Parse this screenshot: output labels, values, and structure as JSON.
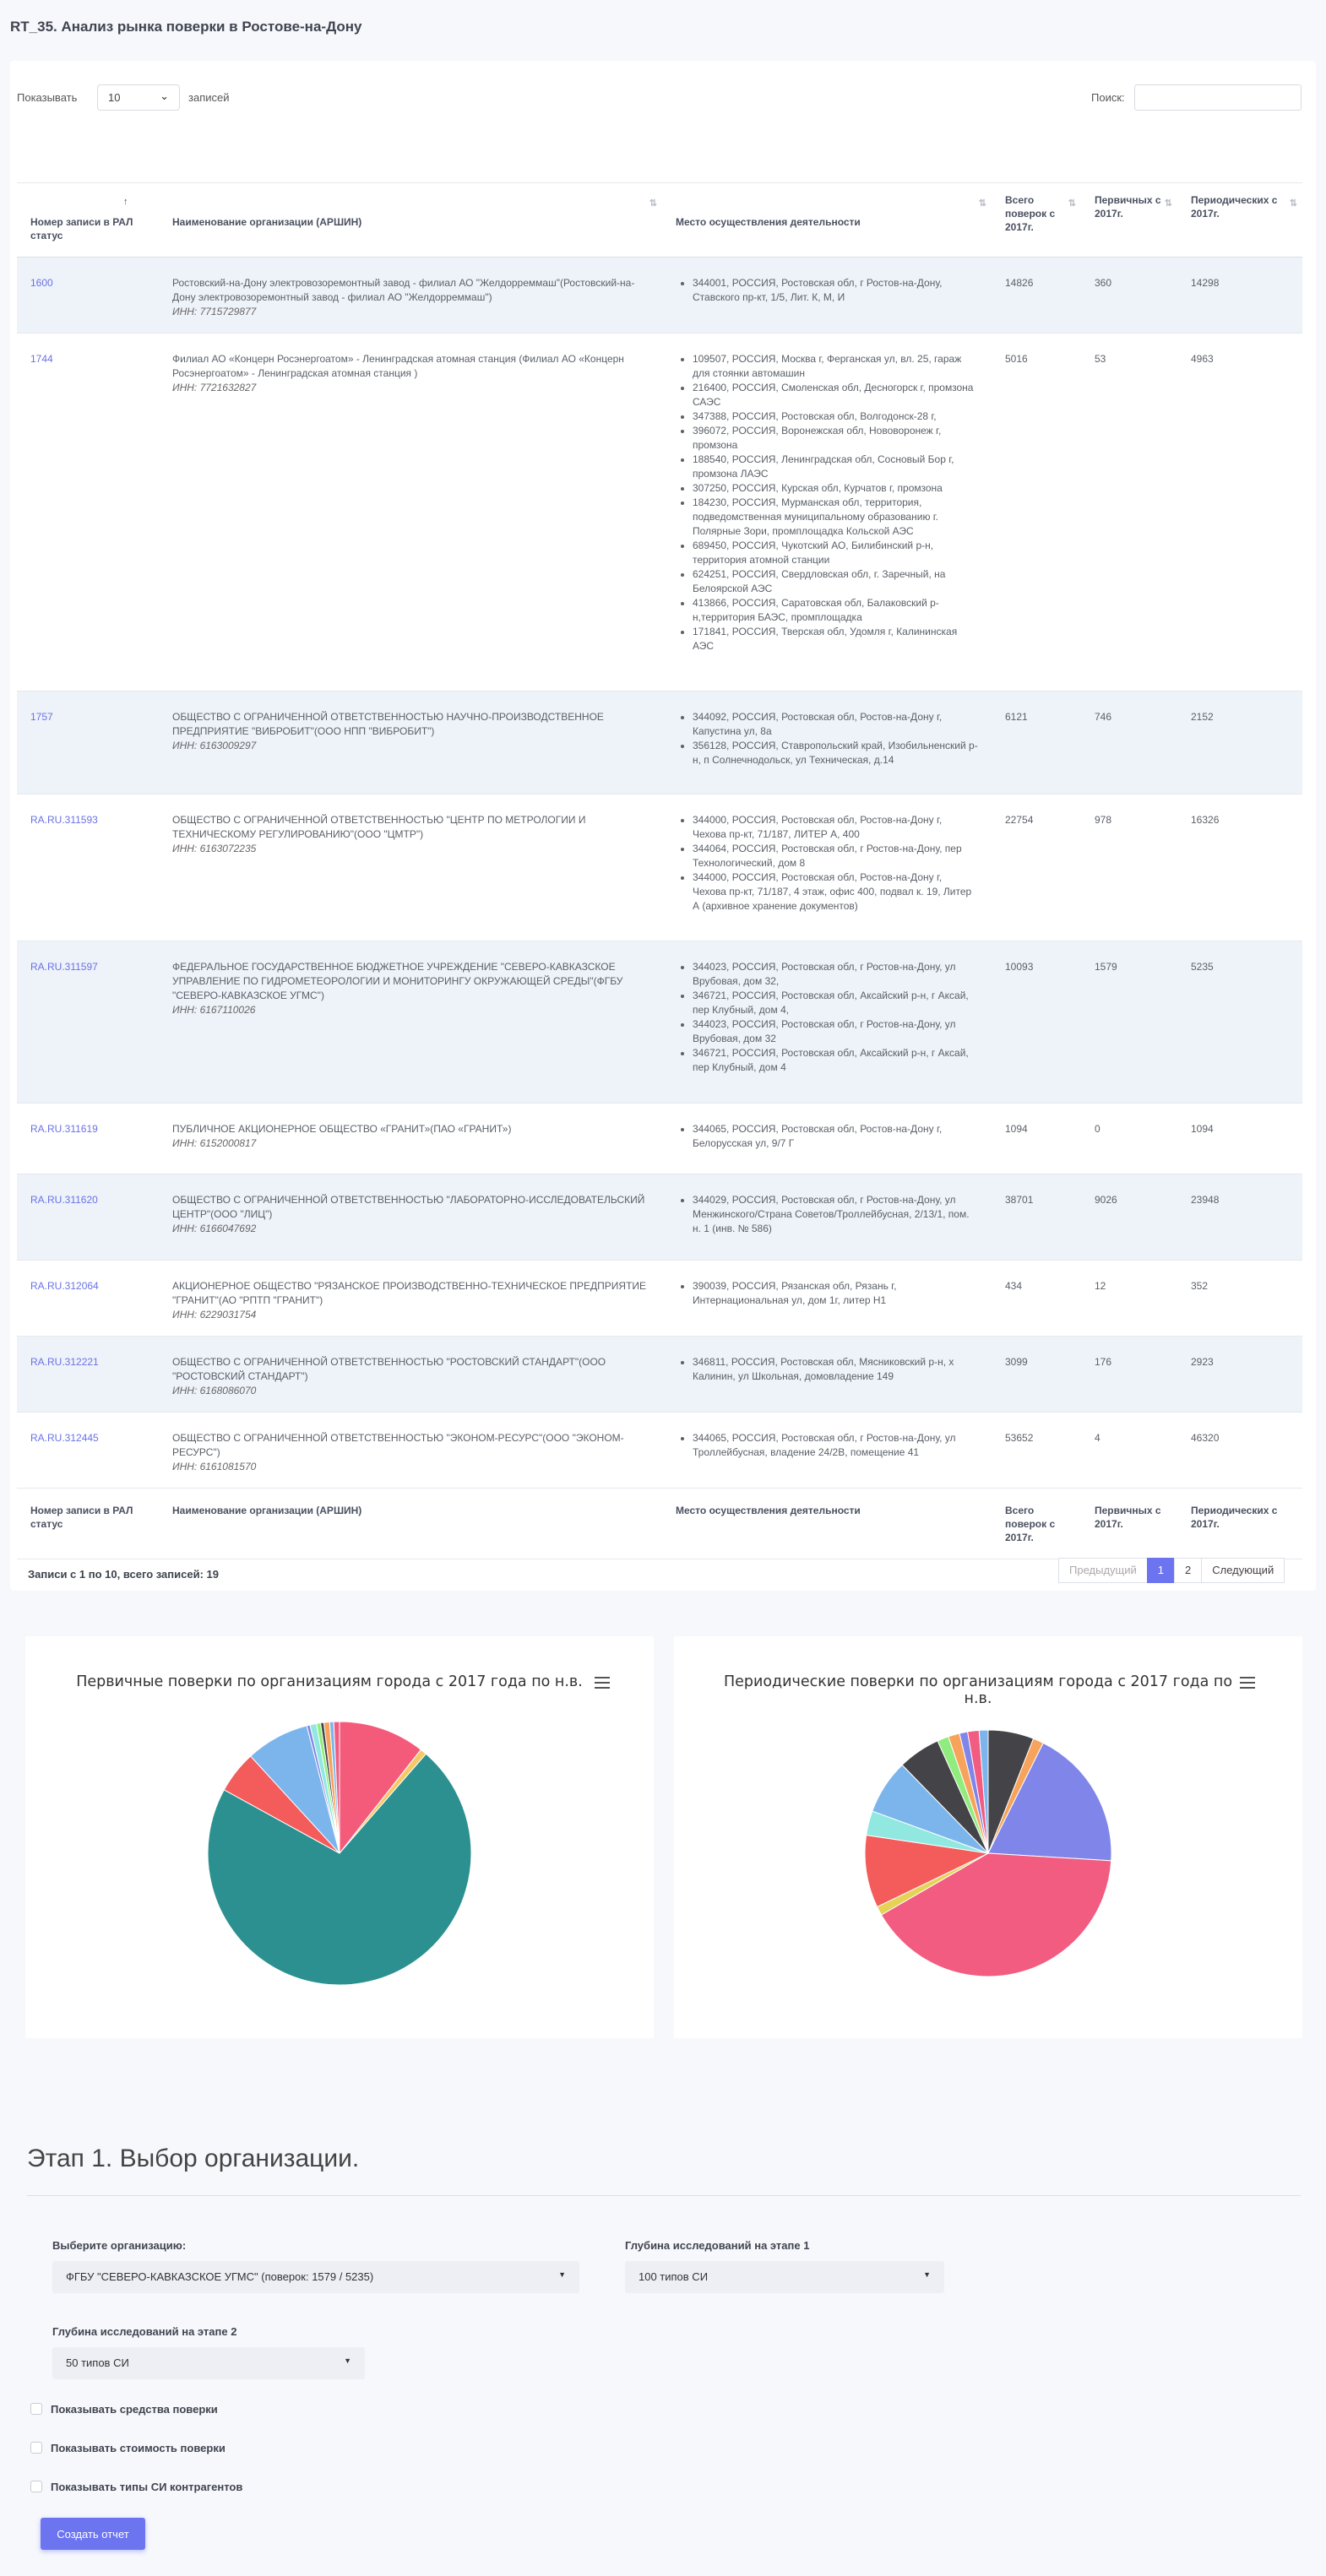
{
  "page_title": "RT_35. Анализ рынка поверки в Ростове-на-Дону",
  "length_control": {
    "label": "Показывать",
    "value": "10",
    "suffix": "записей"
  },
  "search": {
    "label": "Поиск:",
    "placeholder": ""
  },
  "columns": [
    "Номер записи в РАЛ статус",
    "Наименование организации (АРШИН)",
    "Место осуществления деятельности",
    "Всего поверок с 2017г.",
    "Первичных с 2017г.",
    "Периодических с 2017г."
  ],
  "rows": [
    {
      "ral": "1600",
      "org": "Ростовский-на-Дону электровозоремонтный завод - филиал АО \"Желдорреммаш\"(Ростовский-на-Дону электровозоремонтный завод - филиал АО \"Желдорреммаш\")",
      "inn": "ИНН: 7715729877",
      "places": [
        "344001, РОССИЯ, Ростовская обл, г Ростов-на-Дону, Ставского пр-кт, 1/5, Лит. К, М, И"
      ],
      "total": "14826",
      "primary": "360",
      "periodic": "14298"
    },
    {
      "ral": "1744",
      "org": "Филиал АО «Концерн Росэнергоатом» - Ленинградская атомная станция (Филиал АО «Концерн Росэнергоатом» - Ленинградская атомная станция )",
      "inn": "ИНН: 7721632827",
      "places": [
        "109507, РОССИЯ, Москва г, Ферганская ул, вл. 25, гараж для стоянки автомашин",
        "216400, РОССИЯ, Смоленская обл, Десногорск г, промзона САЭС",
        "347388, РОССИЯ, Ростовская обл, Волгодонск-28 г,",
        "396072, РОССИЯ, Воронежская обл, Нововоронеж г, промзона",
        "188540, РОССИЯ, Ленинградская обл, Сосновый Бор г, промзона ЛАЭС",
        "307250, РОССИЯ, Курская обл, Курчатов г, промзона",
        "184230, РОССИЯ, Мурманская обл, территория, подведомственная муниципальному образованию г. Полярные Зори, промплощадка Кольской АЭС",
        "689450, РОССИЯ, Чукотский АО, Билибинский р-н, территория атомной станции",
        "624251, РОССИЯ, Свердловская обл, г. Заречный, на Белоярской АЭС",
        "413866, РОССИЯ, Саратовская обл, Балаковский р-н,территория БАЭС, промплощадка",
        "171841, РОССИЯ, Тверская обл, Удомля г, Калининская АЭС"
      ],
      "total": "5016",
      "primary": "53",
      "periodic": "4963"
    },
    {
      "ral": "1757",
      "org": "ОБЩЕСТВО С ОГРАНИЧЕННОЙ ОТВЕТСТВЕННОСТЬЮ НАУЧНО-ПРОИЗВОДСТВЕННОЕ ПРЕДПРИЯТИЕ \"ВИБРОБИТ\"(ООО НПП \"ВИБРОБИТ\")",
      "inn": "ИНН: 6163009297",
      "places": [
        "344092, РОССИЯ, Ростовская обл, Ростов-на-Дону г, Капустина ул, 8а",
        "356128, РОССИЯ, Ставропольский край, Изобильненский р-н, п Солнечнодольск, ул Техническая, д.14"
      ],
      "total": "6121",
      "primary": "746",
      "periodic": "2152"
    },
    {
      "ral": "RA.RU.311593",
      "org": "ОБЩЕСТВО С ОГРАНИЧЕННОЙ ОТВЕТСТВЕННОСТЬЮ \"ЦЕНТР ПО МЕТРОЛОГИИ И ТЕХНИЧЕСКОМУ РЕГУЛИРОВАНИЮ\"(ООО \"ЦМТР\")",
      "inn": "ИНН: 6163072235",
      "places": [
        "344000, РОССИЯ, Ростовская обл, Ростов-на-Дону г, Чехова пр-кт, 71/187, ЛИТЕР А, 400",
        "344064, РОССИЯ, Ростовская обл, г Ростов-на-Дону, пер Технологический, дом 8",
        "344000, РОССИЯ, Ростовская обл, Ростов-на-Дону г, Чехова пр-кт, 71/187, 4 этаж, офис 400, подвал к. 19, Литер А (архивное хранение документов)"
      ],
      "total": "22754",
      "primary": "978",
      "periodic": "16326"
    },
    {
      "ral": "RA.RU.311597",
      "org": "ФЕДЕРАЛЬНОЕ ГОСУДАРСТВЕННОЕ БЮДЖЕТНОЕ УЧРЕЖДЕНИЕ \"СЕВЕРО-КАВКАЗСКОЕ УПРАВЛЕНИЕ ПО ГИДРОМЕТЕОРОЛОГИИ И МОНИТОРИНГУ ОКРУЖАЮЩЕЙ СРЕДЫ\"(ФГБУ \"СЕВЕРО-КАВКАЗСКОЕ УГМС\")",
      "inn": "ИНН: 6167110026",
      "places": [
        "344023, РОССИЯ, Ростовская обл, г Ростов-на-Дону, ул Врубовая, дом 32,",
        "346721, РОССИЯ, Ростовская обл, Аксайский р-н, г Аксай, пер Клубный, дом 4,",
        "344023, РОССИЯ, Ростовская обл, г Ростов-на-Дону, ул Врубовая, дом 32",
        "346721, РОССИЯ, Ростовская обл, Аксайский р-н, г Аксай, пер Клубный, дом 4"
      ],
      "total": "10093",
      "primary": "1579",
      "periodic": "5235"
    },
    {
      "ral": "RA.RU.311619",
      "org": "ПУБЛИЧНОЕ АКЦИОНЕРНОЕ ОБЩЕСТВО «ГРАНИТ»(ПАО «ГРАНИТ»)",
      "inn": "ИНН: 6152000817",
      "places": [
        "344065, РОССИЯ, Ростовская обл, Ростов-на-Дону г, Белорусская ул, 9/7 Г"
      ],
      "total": "1094",
      "primary": "0",
      "periodic": "1094"
    },
    {
      "ral": "RA.RU.311620",
      "org": "ОБЩЕСТВО С ОГРАНИЧЕННОЙ ОТВЕТСТВЕННОСТЬЮ \"ЛАБОРАТОРНО-ИССЛЕДОВАТЕЛЬСКИЙ ЦЕНТР\"(ООО \"ЛИЦ\")",
      "inn": "ИНН: 6166047692",
      "places": [
        "344029, РОССИЯ, Ростовская обл, г Ростов-на-Дону, ул Менжинского/Страна Советов/Троллейбусная, 2/13/1, пом. н. 1 (инв. № 586)"
      ],
      "total": "38701",
      "primary": "9026",
      "periodic": "23948"
    },
    {
      "ral": "RA.RU.312064",
      "org": "АКЦИОНЕРНОЕ ОБЩЕСТВО \"РЯЗАНСКОЕ ПРОИЗВОДСТВЕННО-ТЕХНИЧЕСКОЕ ПРЕДПРИЯТИЕ \"ГРАНИТ\"(АО \"РПТП \"ГРАНИТ\")",
      "inn": "ИНН: 6229031754",
      "places": [
        "390039, РОССИЯ, Рязанская обл, Рязань г, Интернациональная ул, дом 1г, литер Н1"
      ],
      "total": "434",
      "primary": "12",
      "periodic": "352"
    },
    {
      "ral": "RA.RU.312221",
      "org": "ОБЩЕСТВО С ОГРАНИЧЕННОЙ ОТВЕТСТВЕННОСТЬЮ \"РОСТОВСКИЙ СТАНДАРТ\"(ООО \"РОСТОВСКИЙ СТАНДАРТ\")",
      "inn": "ИНН: 6168086070",
      "places": [
        "346811, РОССИЯ, Ростовская обл, Мясниковский р-н, х Калинин, ул Школьная, домовладение 149"
      ],
      "total": "3099",
      "primary": "176",
      "periodic": "2923"
    },
    {
      "ral": "RA.RU.312445",
      "org": "ОБЩЕСТВО С ОГРАНИЧЕННОЙ ОТВЕТСТВЕННОСТЬЮ \"ЭКОНОМ-РЕСУРС\"(ООО \"ЭКОНОМ-РЕСУРС\")",
      "inn": "ИНН: 6161081570",
      "places": [
        "344065, РОССИЯ, Ростовская обл, г Ростов-на-Дону, ул Троллейбусная, владение 24/2В, помещение 41"
      ],
      "total": "53652",
      "primary": "4",
      "periodic": "46320"
    }
  ],
  "table_info": "Записи с 1 по 10, всего записей: 19",
  "pagination": {
    "prev": "Предыдущий",
    "pages": [
      "1",
      "2"
    ],
    "next": "Следующий"
  },
  "chart_data": [
    {
      "type": "pie",
      "title": "Первичные поверки по организациям города с 2017 года по н.в.",
      "colors": [
        "#f45b7a",
        "#f5c966",
        "#2b908f",
        "#f45b5b",
        "#7cb5ec",
        "#8085e9",
        "#91e8e1",
        "#90ed7d",
        "#434348",
        "#f7a35c",
        "#7cb5ec",
        "#f15c80"
      ],
      "values": [
        10.6,
        0.8,
        71.6,
        5.2,
        7.8,
        0.4,
        0.8,
        0.5,
        0.4,
        0.7,
        0.5,
        0.7
      ]
    },
    {
      "type": "pie",
      "title": "Периодические поверки по организациям города с 2017 года по н.в.",
      "colors": [
        "#434348",
        "#f7a35c",
        "#8085e9",
        "#f15c80",
        "#e4d354",
        "#f45b5b",
        "#91e8e1",
        "#7cb5ec",
        "#434348",
        "#90ed7d",
        "#f7a35c",
        "#8085e9",
        "#f15c80",
        "#7cb5ec"
      ],
      "values": [
        5.6,
        1.3,
        17.4,
        38.1,
        1.1,
        8.9,
        3.0,
        6.7,
        5.2,
        1.4,
        1.4,
        1.0,
        1.4,
        1.1
      ]
    }
  ],
  "stage1": {
    "title": "Этап 1. Выбор организации.",
    "org_label": "Выберите организацию:",
    "org_value": "ФГБУ \"СЕВЕРО-КАВКАЗСКОЕ УГМС\" (поверок: 1579 / 5235)",
    "depth1_label": "Глубина исследований на этапе 1",
    "depth1_value": "100 типов СИ",
    "depth2_label": "Глубина исследований на этапе 2",
    "depth2_value": "50 типов СИ",
    "checkboxes": [
      "Показывать средства поверки",
      "Показывать стоимость поверки",
      "Показывать типы СИ контрагентов"
    ],
    "button": "Создать отчет"
  }
}
